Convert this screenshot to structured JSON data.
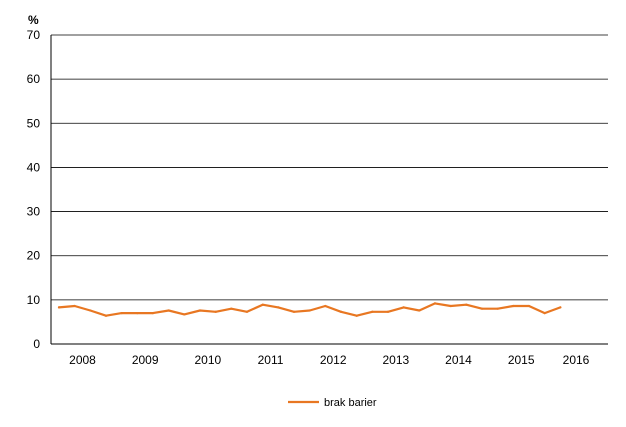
{
  "chart_data": {
    "type": "line",
    "title": "",
    "xlabel": "",
    "ylabel": "%",
    "ylim": [
      0,
      70
    ],
    "yticks": [
      0,
      10,
      20,
      30,
      40,
      50,
      60,
      70
    ],
    "xlim": [
      0,
      33
    ],
    "xticks": [
      {
        "label": "2008",
        "x": 1.5
      },
      {
        "label": "2009",
        "x": 5.5
      },
      {
        "label": "2010",
        "x": 9.5
      },
      {
        "label": "2011",
        "x": 13.5
      },
      {
        "label": "2012",
        "x": 17.5
      },
      {
        "label": "2013",
        "x": 21.5
      },
      {
        "label": "2014",
        "x": 25.5
      },
      {
        "label": "2015",
        "x": 29.5
      },
      {
        "label": "2016",
        "x": 33
      }
    ],
    "grid": true,
    "legend": "bottom-center",
    "colors": {
      "series": "#E87722",
      "grid": "#000000",
      "axis": "#000000"
    },
    "series": [
      {
        "name": "brak barier",
        "values": [
          8.3,
          8.6,
          7.6,
          6.4,
          7.0,
          7.0,
          7.0,
          7.6,
          6.7,
          7.6,
          7.3,
          8.0,
          7.3,
          8.9,
          8.3,
          7.3,
          7.6,
          8.6,
          7.3,
          6.4,
          7.3,
          7.3,
          8.3,
          7.6,
          9.2,
          8.6,
          8.9,
          8.0,
          8.0,
          8.6,
          8.6,
          7.0,
          8.3
        ]
      }
    ]
  }
}
